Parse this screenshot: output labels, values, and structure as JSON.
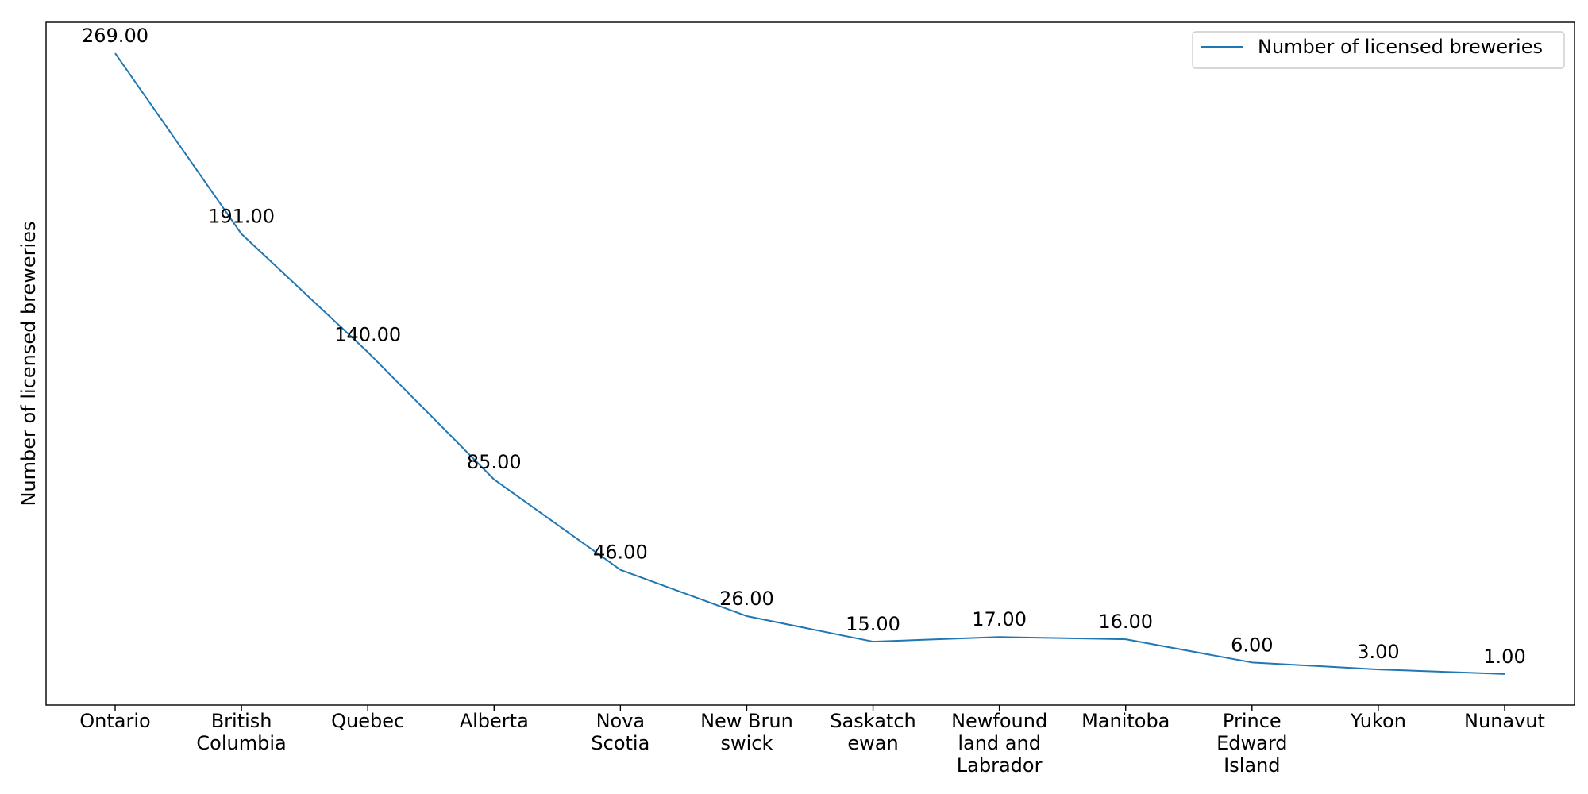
{
  "chart_data": {
    "type": "line",
    "categories": [
      [
        "Ontario"
      ],
      [
        "British",
        "Columbia"
      ],
      [
        "Quebec"
      ],
      [
        "Alberta"
      ],
      [
        "Nova",
        "Scotia"
      ],
      [
        "New Brun",
        "swick"
      ],
      [
        "Saskatch",
        "ewan"
      ],
      [
        "Newfound",
        "land and",
        "Labrador"
      ],
      [
        "Manitoba"
      ],
      [
        "Prince",
        "Edward",
        "Island"
      ],
      [
        "Yukon"
      ],
      [
        "Nunavut"
      ]
    ],
    "series": [
      {
        "name": "Number of licensed breweries",
        "values": [
          269,
          191,
          140,
          85,
          46,
          26,
          15,
          17,
          16,
          6,
          3,
          1
        ],
        "color": "#1f77b4"
      }
    ],
    "data_labels": [
      "269.00",
      "191.00",
      "140.00",
      "85.00",
      "46.00",
      "26.00",
      "15.00",
      "17.00",
      "16.00",
      "6.00",
      "3.00",
      "1.00"
    ],
    "title": "",
    "xlabel": "",
    "ylabel": "Number of licensed breweries",
    "ylim": [
      -12.4,
      282.4
    ],
    "y_ticks_shown": false,
    "grid": false,
    "legend_position": "top-right"
  }
}
